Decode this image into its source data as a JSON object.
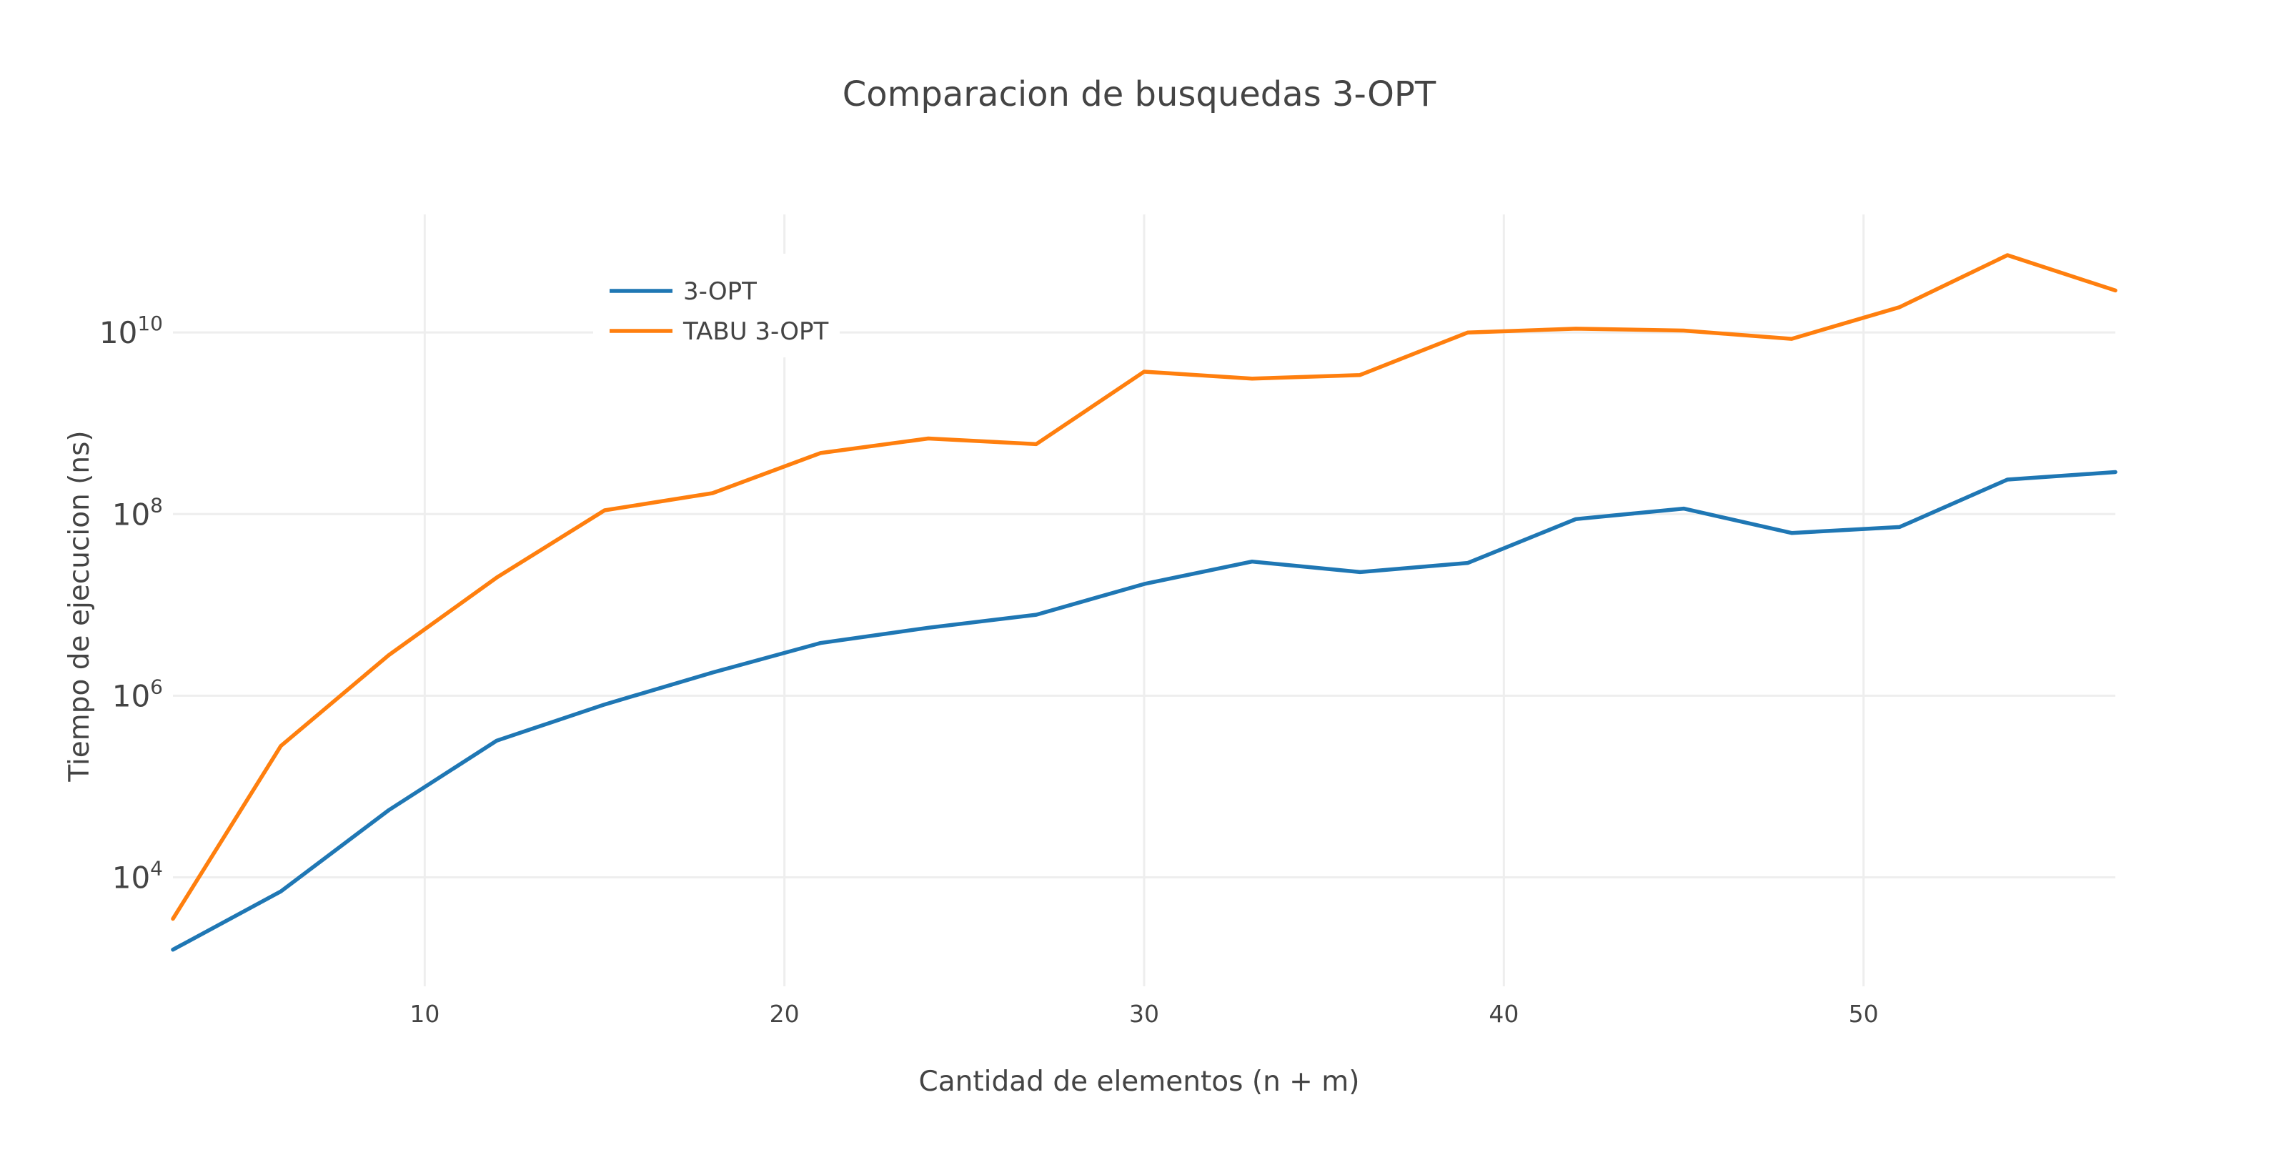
{
  "chart_data": {
    "type": "line",
    "title": "Comparacion de busquedas 3-OPT",
    "xlabel": "Cantidad de elementos (n + m)",
    "ylabel": "Tiempo de ejecucion (ns)",
    "xlim": [
      3,
      57
    ],
    "ylim_log10": [
      2.8,
      11.3
    ],
    "yscale": "log",
    "x_ticks": [
      10,
      20,
      30,
      40,
      50
    ],
    "y_ticks": [
      {
        "value": 10000,
        "base": "10",
        "exp": "4"
      },
      {
        "value": 1000000,
        "base": "10",
        "exp": "6"
      },
      {
        "value": 100000000,
        "base": "10",
        "exp": "8"
      },
      {
        "value": 10000000000,
        "base": "10",
        "exp": "10"
      }
    ],
    "grid": true,
    "legend_position": "top-left",
    "x": [
      3,
      6,
      9,
      12,
      15,
      18,
      21,
      24,
      27,
      30,
      33,
      36,
      39,
      42,
      45,
      48,
      51,
      54,
      57
    ],
    "series": [
      {
        "name": "3-OPT",
        "color": "#1f77b4",
        "values": [
          1600,
          7000,
          55000,
          320000,
          800000,
          1800000,
          3800000,
          5600000,
          7800000,
          17000000,
          30000000,
          23000000,
          29000000,
          88000000,
          115000000,
          62000000,
          72000000,
          240000000,
          290000000
        ]
      },
      {
        "name": "TABU 3-OPT",
        "color": "#ff7f0e",
        "values": [
          3500,
          280000,
          2800000,
          20000000,
          110000000,
          170000000,
          470000000,
          680000000,
          590000000,
          3700000000,
          3100000000,
          3400000000,
          10000000000,
          11000000000,
          10500000000,
          8500000000,
          19000000000,
          71000000000,
          29000000000
        ]
      }
    ]
  }
}
